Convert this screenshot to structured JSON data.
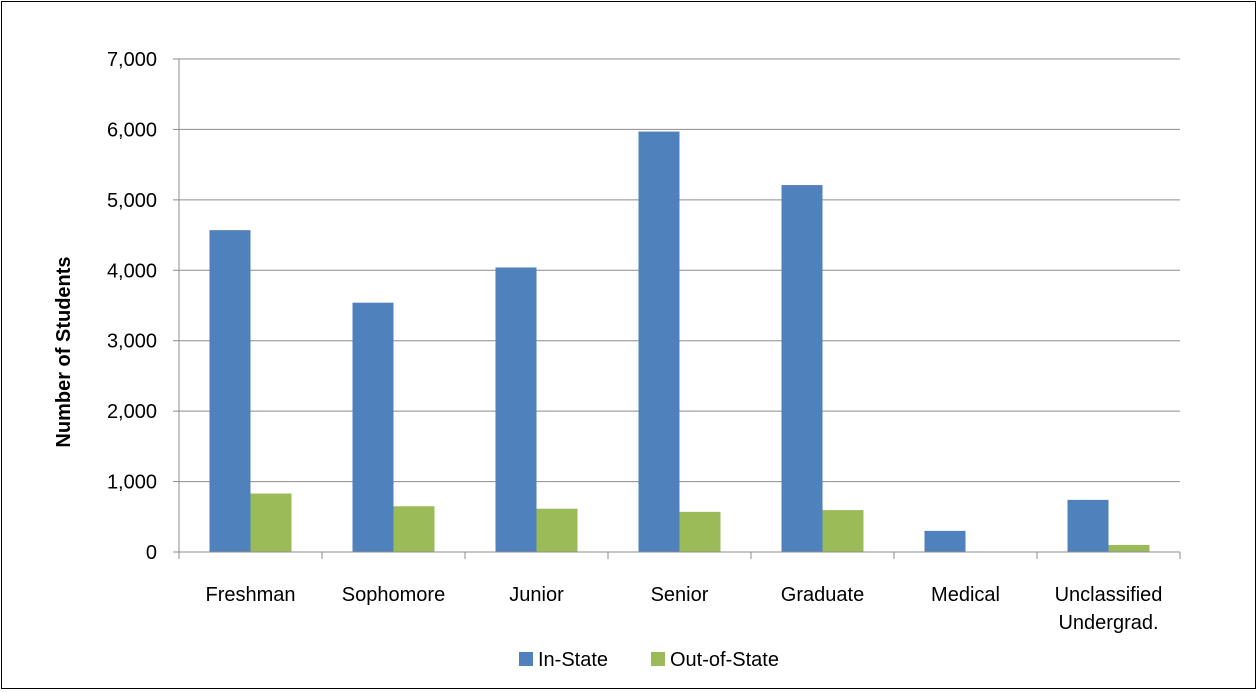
{
  "chart_data": {
    "type": "bar",
    "title": "",
    "xlabel": "",
    "ylabel": "Number of Students",
    "ylim": [
      0,
      7000
    ],
    "y_ticks": [
      "0",
      "1,000",
      "2,000",
      "3,000",
      "4,000",
      "5,000",
      "6,000",
      "7,000"
    ],
    "categories": [
      [
        "Freshman"
      ],
      [
        "Sophomore"
      ],
      [
        "Junior"
      ],
      [
        "Senior"
      ],
      [
        "Graduate"
      ],
      [
        "Medical"
      ],
      [
        "Unclassified",
        "Undergrad."
      ]
    ],
    "series": [
      {
        "name": "In-State",
        "color": "#4F81BD",
        "values": [
          4570,
          3540,
          4040,
          5970,
          5210,
          300,
          740
        ]
      },
      {
        "name": "Out-of-State",
        "color": "#9BBB59",
        "values": [
          830,
          650,
          615,
          570,
          595,
          0,
          100
        ]
      }
    ],
    "grid": true,
    "legend_position": "bottom"
  }
}
